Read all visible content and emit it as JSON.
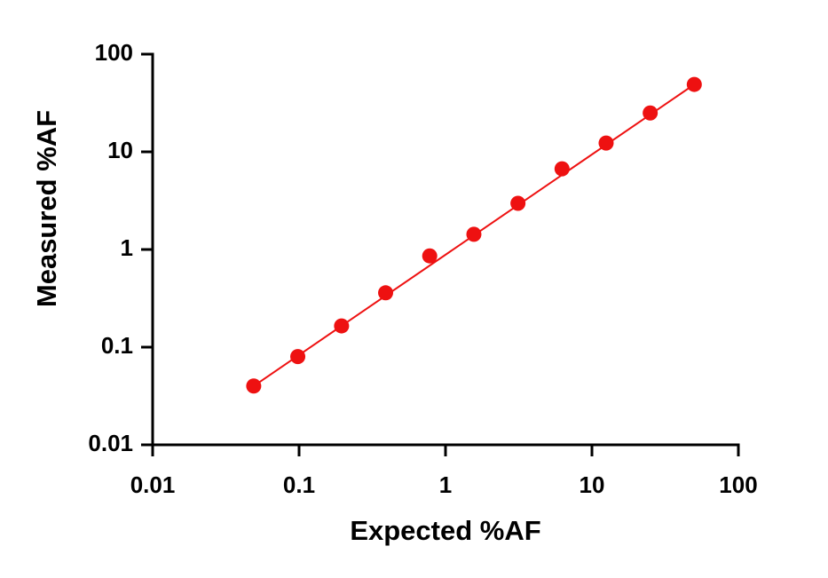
{
  "chart_data": {
    "type": "scatter",
    "log_x": true,
    "log_y": true,
    "x_label": "Expected %AF",
    "y_label": "Measured %AF",
    "color": "#ee1111",
    "x": [
      0.049,
      0.098,
      0.195,
      0.39,
      0.78,
      1.5625,
      3.125,
      6.25,
      12.5,
      25,
      50
    ],
    "values": [
      0.04,
      0.08,
      0.165,
      0.36,
      0.86,
      1.43,
      2.97,
      6.7,
      12.3,
      25,
      49
    ],
    "fit": {
      "x": [
        0.049,
        50
      ],
      "values": [
        0.04,
        49
      ]
    },
    "xlim": [
      0.01,
      100
    ],
    "xticks": [
      0.01,
      0.1,
      1,
      10,
      100
    ],
    "ylim": [
      0.01,
      100
    ],
    "yticks": [
      0.01,
      0.1,
      1,
      10,
      100
    ]
  }
}
